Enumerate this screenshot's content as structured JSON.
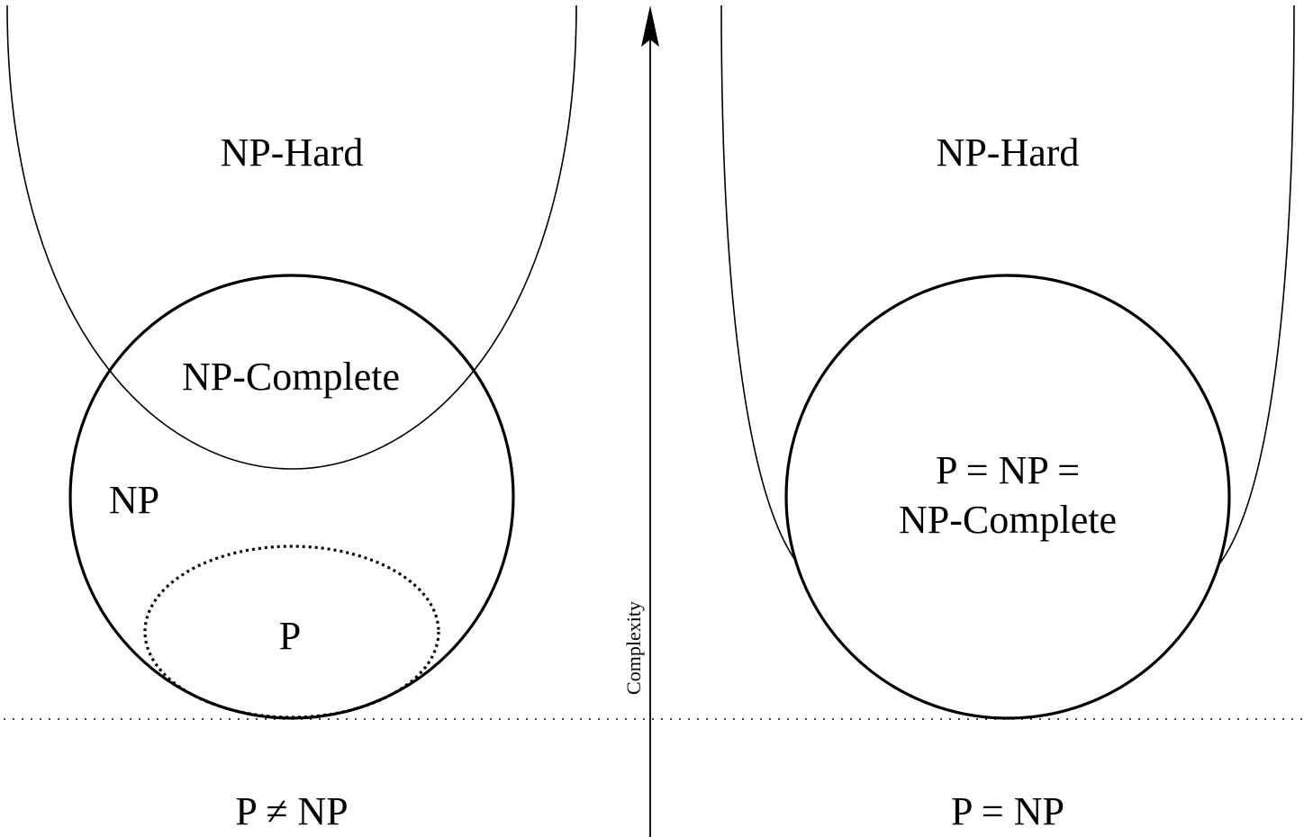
{
  "left_panel": {
    "np_hard_label": "NP-Hard",
    "np_complete_label": "NP-Complete",
    "np_label": "NP",
    "p_label": "P",
    "caption": "P ≠ NP"
  },
  "right_panel": {
    "np_hard_label": "NP-Hard",
    "center_line1": "P = NP =",
    "center_line2": "NP-Complete",
    "caption": "P = NP"
  },
  "axis": {
    "label": "Complexity"
  },
  "colors": {
    "stroke": "#000000",
    "background": "#ffffff"
  }
}
